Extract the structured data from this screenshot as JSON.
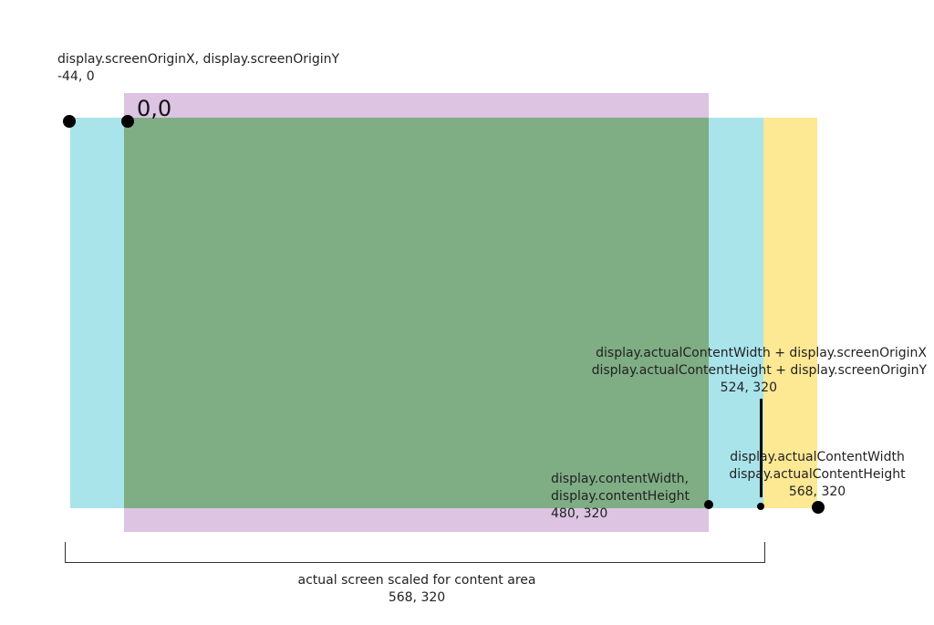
{
  "labels": {
    "screen_origin": {
      "line1": "display.screenOriginX, display.screenOriginY",
      "line2": "-44, 0"
    },
    "origin_zero": "0,0",
    "actual_plus_origin": {
      "line1": "display.actualContentWidth + display.screenOriginX",
      "line2": "display.actualContentHeight + display.screenOriginY",
      "line3": "524, 320"
    },
    "actual_content": {
      "line1": "display.actualContentWidth",
      "line2": "dispay.actualContentHeight",
      "line3": "568, 320"
    },
    "content": {
      "line1": "display.contentWidth,",
      "line2": "display.contentHeight",
      "line3": "480, 320"
    },
    "bracket": {
      "line1": "actual screen scaled for content area",
      "line2": "568, 320"
    }
  },
  "colors": {
    "actual_screen_area": "#a9e4eb",
    "content_area": "#7fad84",
    "letterbox_area": "#dcc4e2",
    "extra_area": "#fde893"
  }
}
